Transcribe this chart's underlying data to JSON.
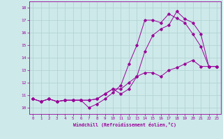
{
  "xlabel": "Windchill (Refroidissement éolien,°C)",
  "bg_color": "#cde9e9",
  "line_color": "#990099",
  "xlim": [
    -0.5,
    23.5
  ],
  "ylim": [
    9.5,
    18.5
  ],
  "xticks": [
    0,
    1,
    2,
    3,
    4,
    5,
    6,
    7,
    8,
    9,
    10,
    11,
    12,
    13,
    14,
    15,
    16,
    17,
    18,
    19,
    20,
    21,
    22,
    23
  ],
  "yticks": [
    10,
    11,
    12,
    13,
    14,
    15,
    16,
    17,
    18
  ],
  "grid_color": "#b0d0d0",
  "series1_x": [
    0,
    1,
    2,
    3,
    4,
    5,
    6,
    7,
    8,
    9,
    10,
    11,
    12,
    13,
    14,
    15,
    16,
    17,
    18,
    19,
    20,
    21,
    22,
    23
  ],
  "series1_y": [
    10.7,
    10.5,
    10.7,
    10.5,
    10.6,
    10.6,
    10.6,
    10.0,
    10.3,
    10.7,
    11.2,
    11.8,
    13.5,
    15.0,
    17.0,
    17.0,
    16.8,
    17.5,
    17.15,
    16.8,
    15.9,
    14.9,
    13.3,
    13.3
  ],
  "series2_x": [
    0,
    1,
    2,
    3,
    4,
    5,
    6,
    7,
    8,
    9,
    10,
    11,
    12,
    13,
    14,
    15,
    16,
    17,
    18,
    19,
    20,
    21,
    22,
    23
  ],
  "series2_y": [
    10.7,
    10.5,
    10.7,
    10.5,
    10.6,
    10.6,
    10.6,
    10.6,
    10.7,
    11.1,
    11.5,
    11.1,
    11.5,
    12.5,
    14.5,
    15.8,
    16.3,
    16.6,
    17.7,
    17.1,
    16.8,
    15.9,
    13.3,
    13.3
  ],
  "series3_x": [
    0,
    1,
    2,
    3,
    4,
    5,
    6,
    7,
    8,
    9,
    10,
    11,
    12,
    13,
    14,
    15,
    16,
    17,
    18,
    19,
    20,
    21,
    22,
    23
  ],
  "series3_y": [
    10.7,
    10.5,
    10.7,
    10.5,
    10.6,
    10.6,
    10.6,
    10.6,
    10.7,
    11.1,
    11.5,
    11.5,
    12.0,
    12.5,
    12.8,
    12.8,
    12.5,
    13.0,
    13.2,
    13.5,
    13.8,
    13.3,
    13.3,
    13.3
  ]
}
